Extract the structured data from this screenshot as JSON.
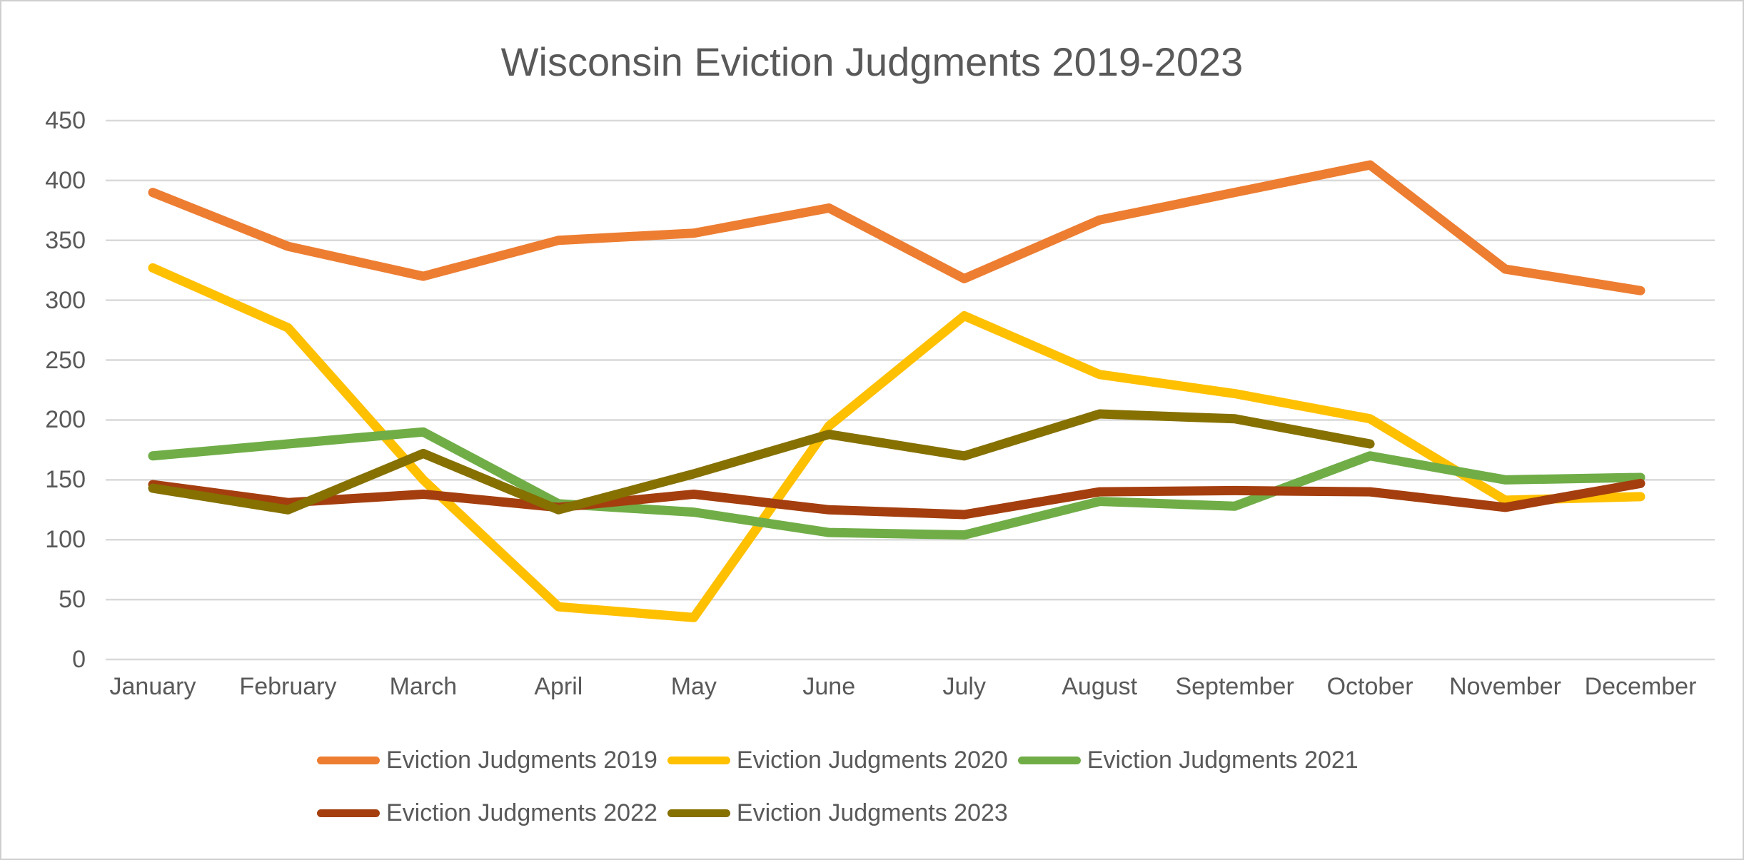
{
  "title": "Wisconsin Eviction Judgments 2019-2023",
  "colors": {
    "background": "#FFFFFF",
    "border": "#CFCFCF",
    "gridline": "#D9D9D9",
    "text": "#595959",
    "series_2019": "#ED7D31",
    "series_2020": "#FFC000",
    "series_2021": "#70AD47",
    "series_2022": "#A43E0E",
    "series_2023": "#857000"
  },
  "chart_data": {
    "type": "line",
    "title": "Wisconsin Eviction Judgments 2019-2023",
    "xlabel": "",
    "ylabel": "",
    "ylim": [
      0,
      450
    ],
    "ytick_step": 50,
    "y_ticks": [
      450,
      400,
      350,
      300,
      250,
      200,
      150,
      100,
      50,
      0
    ],
    "grid": "horizontal",
    "legend_position": "bottom",
    "categories": [
      "January",
      "February",
      "March",
      "April",
      "May",
      "June",
      "July",
      "August",
      "September",
      "October",
      "November",
      "December"
    ],
    "series": [
      {
        "name": "Eviction Judgments 2019",
        "color": "#ED7D31",
        "values": [
          390,
          345,
          320,
          350,
          356,
          377,
          318,
          367,
          390,
          413,
          326,
          308
        ]
      },
      {
        "name": "Eviction Judgments 2020",
        "color": "#FFC000",
        "values": [
          327,
          277,
          150,
          44,
          35,
          195,
          287,
          238,
          222,
          201,
          133,
          136
        ]
      },
      {
        "name": "Eviction Judgments 2021",
        "color": "#70AD47",
        "values": [
          170,
          180,
          190,
          130,
          123,
          106,
          104,
          132,
          128,
          170,
          150,
          152
        ]
      },
      {
        "name": "Eviction Judgments 2022",
        "color": "#A43E0E",
        "values": [
          146,
          131,
          138,
          127,
          138,
          125,
          121,
          140,
          141,
          140,
          127,
          147
        ]
      },
      {
        "name": "Eviction Judgments 2023",
        "color": "#857000",
        "values": [
          143,
          125,
          172,
          125,
          155,
          188,
          170,
          205,
          201,
          180,
          null,
          null
        ]
      }
    ]
  },
  "legend": {
    "rows": [
      [
        0,
        1,
        2
      ],
      [
        3,
        4
      ]
    ]
  }
}
